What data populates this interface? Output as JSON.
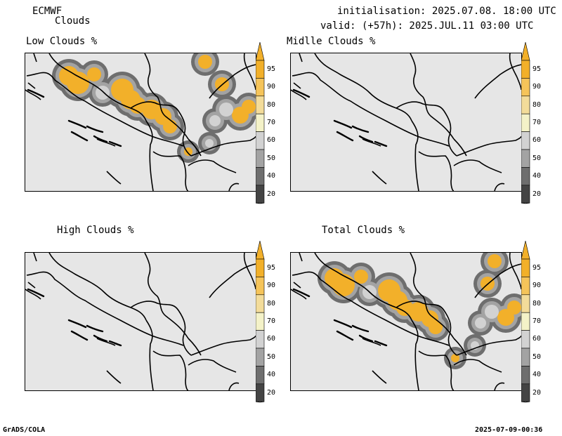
{
  "header": {
    "model": "ECMWF",
    "product": "Clouds",
    "init": "initialisation: 2025.07.08. 18:00 UTC",
    "valid": "valid: (+57h): 2025.JUL.11 03:00 UTC"
  },
  "panels": [
    {
      "title": "Low Clouds %"
    },
    {
      "title": "Midlle Clouds %"
    },
    {
      "title": "High Clouds %"
    },
    {
      "title": "Total Clouds %"
    }
  ],
  "colorbar": {
    "levels": [
      "95",
      "90",
      "80",
      "70",
      "60",
      "50",
      "40",
      "20"
    ],
    "colors": [
      "#f2b02a",
      "#f5c45a",
      "#f3dc9a",
      "#f4f2c8",
      "#d2d2d2",
      "#a3a3a3",
      "#6e6e6e",
      "#444444"
    ]
  },
  "footer": {
    "left": "GrADS/COLA",
    "right": "2025-07-09-00:36"
  }
}
